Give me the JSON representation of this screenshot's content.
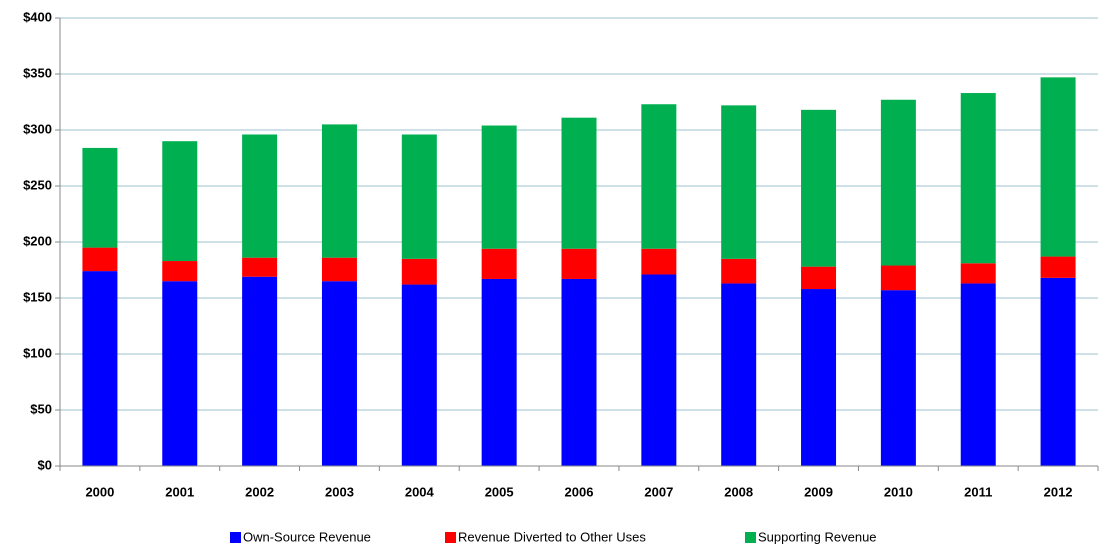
{
  "chart_data": {
    "type": "stacked_bar",
    "categories": [
      "2000",
      "2001",
      "2002",
      "2003",
      "2004",
      "2005",
      "2006",
      "2007",
      "2008",
      "2009",
      "2010",
      "2011",
      "2012"
    ],
    "series": [
      {
        "name": "Own-Source Revenue",
        "color": "#0000ff",
        "values": [
          174,
          165,
          169,
          165,
          162,
          167,
          167,
          171,
          163,
          158,
          157,
          163,
          168
        ]
      },
      {
        "name": "Revenue Diverted to Other Uses",
        "color": "#ff0000",
        "values": [
          21,
          18,
          17,
          21,
          23,
          27,
          27,
          23,
          22,
          20,
          22,
          18,
          19
        ]
      },
      {
        "name": "Supporting Revenue",
        "color": "#00b050",
        "values": [
          89,
          107,
          110,
          119,
          111,
          110,
          117,
          129,
          137,
          140,
          148,
          152,
          160
        ]
      }
    ],
    "ylim": [
      0,
      400
    ],
    "yticks": [
      {
        "value": 0,
        "label": "$0"
      },
      {
        "value": 50,
        "label": "$50"
      },
      {
        "value": 100,
        "label": "$100"
      },
      {
        "value": 150,
        "label": "$150"
      },
      {
        "value": 200,
        "label": "$200"
      },
      {
        "value": 250,
        "label": "$250"
      },
      {
        "value": 300,
        "label": "$300"
      },
      {
        "value": 350,
        "label": "$350"
      },
      {
        "value": 400,
        "label": "$400"
      }
    ],
    "grid": true,
    "legend": "bottom"
  }
}
